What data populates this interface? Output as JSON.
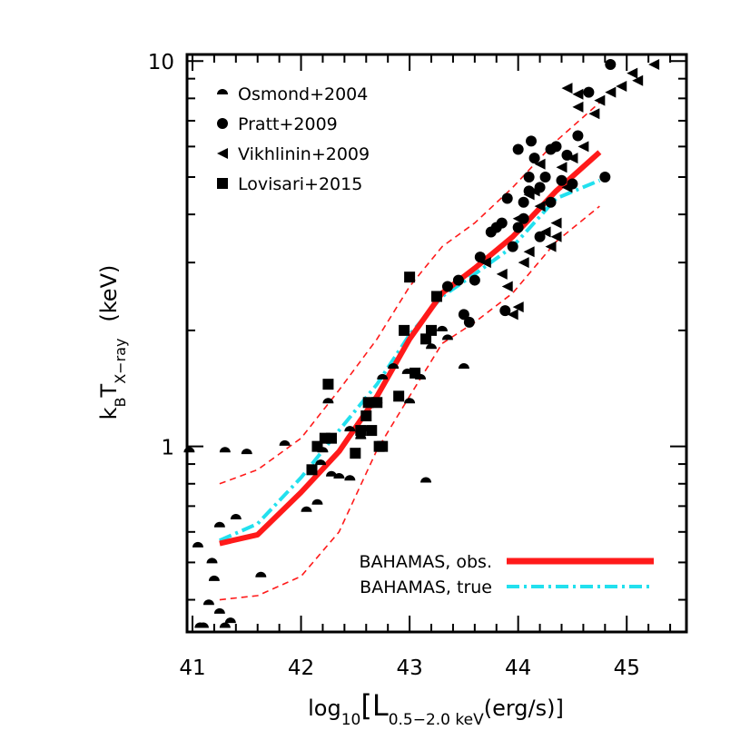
{
  "chart_data": {
    "type": "scatter",
    "xlabel": {
      "pre": "log",
      "sub1": "10",
      "open": "[L",
      "sub2": "0.5−2.0 keV",
      "post": "(erg/s)]"
    },
    "ylabel": {
      "pre": "k",
      "sub1": "B",
      "mid": "T",
      "sub2": "X−ray",
      "post": "(keV)"
    },
    "xlim": [
      40.95,
      45.55
    ],
    "ylim": [
      0.33,
      10.4
    ],
    "yscale": "log",
    "x_ticks": [
      41,
      42,
      43,
      44,
      45
    ],
    "x_tick_labels": [
      "41",
      "42",
      "43",
      "44",
      "45"
    ],
    "y_ticks": [
      1,
      10
    ],
    "y_tick_labels": [
      "1",
      "10"
    ],
    "legend": {
      "position": "top-left",
      "entries": [
        {
          "label": "Osmond+2004",
          "marker": "half-circle"
        },
        {
          "label": "Pratt+2009",
          "marker": "circle"
        },
        {
          "label": "Vikhlinin+2009",
          "marker": "left-triangle"
        },
        {
          "label": "Lovisari+2015",
          "marker": "square"
        }
      ]
    },
    "line_legend": {
      "position": "bottom-right",
      "entries": [
        {
          "label": "BAHAMAS, obs.",
          "color": "#ff1a1a",
          "style": "solid"
        },
        {
          "label": "BAHAMAS, true",
          "color": "#22e0ee",
          "style": "dash-dot"
        }
      ]
    },
    "series": [
      {
        "name": "Osmond+2004",
        "marker": "half-circle",
        "x": [
          40.97,
          41.07,
          41.1,
          41.18,
          41.3,
          41.25,
          41.35,
          41.5,
          41.3,
          41.4,
          41.63,
          41.85,
          42.05,
          42.18,
          42.25,
          42.28,
          42.15,
          42.35,
          42.2,
          42.45,
          42.6,
          42.7,
          42.55,
          42.75,
          42.85,
          42.98,
          43.1,
          43.2,
          43.3,
          43.35,
          43.5,
          43.15,
          43.0,
          42.45,
          41.25,
          41.15,
          41.2,
          41.05
        ],
        "y": [
          0.97,
          0.34,
          0.34,
          0.5,
          0.34,
          0.37,
          0.35,
          0.96,
          0.97,
          0.65,
          0.46,
          1.01,
          0.68,
          0.9,
          1.3,
          0.84,
          0.71,
          0.83,
          0.97,
          1.1,
          1.1,
          1.3,
          1.05,
          1.5,
          1.6,
          1.55,
          1.5,
          1.8,
          2.0,
          1.9,
          1.6,
          0.81,
          1.3,
          0.82,
          0.62,
          0.39,
          0.45,
          0.55
        ]
      },
      {
        "name": "Pratt+2009",
        "marker": "circle",
        "x": [
          43.35,
          43.45,
          43.6,
          43.65,
          43.75,
          43.85,
          43.88,
          43.95,
          44.0,
          44.05,
          44.1,
          44.15,
          44.2,
          44.25,
          44.3,
          44.35,
          44.4,
          44.45,
          44.5,
          44.55,
          44.65,
          44.8,
          44.85,
          43.9,
          44.0,
          44.1,
          44.2,
          44.3,
          43.5,
          43.55,
          43.8,
          44.05,
          44.12
        ],
        "y": [
          2.6,
          2.7,
          2.7,
          3.1,
          3.6,
          3.8,
          2.25,
          3.3,
          3.7,
          4.3,
          5.0,
          5.6,
          4.7,
          5.0,
          5.9,
          6.0,
          4.9,
          5.7,
          4.8,
          6.4,
          8.3,
          5.0,
          9.8,
          4.4,
          5.9,
          4.6,
          3.5,
          4.3,
          2.2,
          2.1,
          3.7,
          3.9,
          6.2
        ]
      },
      {
        "name": "Vikhlinin+2009",
        "marker": "left-triangle",
        "x": [
          43.7,
          43.85,
          43.9,
          44.0,
          44.05,
          44.1,
          44.15,
          44.2,
          44.25,
          44.3,
          44.35,
          44.4,
          44.45,
          44.5,
          44.55,
          44.6,
          44.7,
          44.75,
          44.85,
          44.95,
          45.05,
          45.25,
          45.1,
          44.55,
          44.45,
          44.2,
          44.1,
          44.0,
          43.95,
          44.35
        ],
        "y": [
          3.0,
          2.8,
          2.6,
          2.3,
          3.0,
          3.2,
          4.6,
          4.2,
          3.6,
          3.3,
          3.8,
          5.3,
          4.7,
          5.6,
          7.6,
          6.0,
          7.3,
          7.9,
          8.3,
          8.6,
          9.3,
          9.8,
          8.9,
          8.2,
          8.5,
          5.4,
          4.5,
          3.9,
          2.2,
          3.5
        ]
      },
      {
        "name": "Lovisari+2015",
        "marker": "square",
        "x": [
          42.1,
          42.15,
          42.22,
          42.25,
          42.28,
          42.5,
          42.55,
          42.6,
          42.62,
          42.65,
          42.7,
          42.72,
          42.75,
          42.9,
          42.95,
          43.0,
          43.05,
          43.15,
          43.2,
          43.25
        ],
        "y": [
          0.87,
          1.0,
          1.05,
          1.45,
          1.05,
          0.96,
          1.1,
          1.2,
          1.3,
          1.1,
          1.3,
          1.0,
          1.0,
          1.35,
          2.0,
          2.75,
          1.55,
          1.9,
          2.0,
          2.45
        ]
      },
      {
        "name": "BAHAMAS, obs.",
        "type": "line",
        "style": "solid",
        "color": "#ff1a1a",
        "x": [
          41.25,
          41.6,
          42.0,
          42.35,
          42.7,
          43.0,
          43.3,
          43.6,
          43.95,
          44.35,
          44.75
        ],
        "y": [
          0.56,
          0.59,
          0.76,
          0.97,
          1.35,
          1.9,
          2.5,
          2.9,
          3.5,
          4.6,
          5.8
        ]
      },
      {
        "name": "BAHAMAS, true",
        "type": "line",
        "style": "dash-dot",
        "color": "#22e0ee",
        "x": [
          41.25,
          41.6,
          42.0,
          42.35,
          42.7,
          43.0,
          43.3,
          43.6,
          43.95,
          44.35,
          44.75
        ],
        "y": [
          0.57,
          0.63,
          0.83,
          1.1,
          1.45,
          1.95,
          2.45,
          2.8,
          3.3,
          4.4,
          4.9
        ]
      },
      {
        "name": "",
        "type": "line",
        "style": "dashed",
        "color": "#ff1a1a",
        "x": [
          41.25,
          41.6,
          42.0,
          42.35,
          42.7,
          43.0,
          43.3,
          43.6,
          43.95,
          44.35,
          44.75
        ],
        "y": [
          0.8,
          0.87,
          1.05,
          1.4,
          1.9,
          2.6,
          3.3,
          3.8,
          4.7,
          6.2,
          7.8
        ]
      },
      {
        "name": "",
        "type": "line",
        "style": "dashed",
        "color": "#ff1a1a",
        "x": [
          41.25,
          41.6,
          42.0,
          42.35,
          42.7,
          43.0,
          43.3,
          43.6,
          43.95,
          44.35,
          44.75
        ],
        "y": [
          0.4,
          0.41,
          0.46,
          0.6,
          0.98,
          1.35,
          1.85,
          2.1,
          2.5,
          3.4,
          4.2
        ]
      }
    ]
  }
}
